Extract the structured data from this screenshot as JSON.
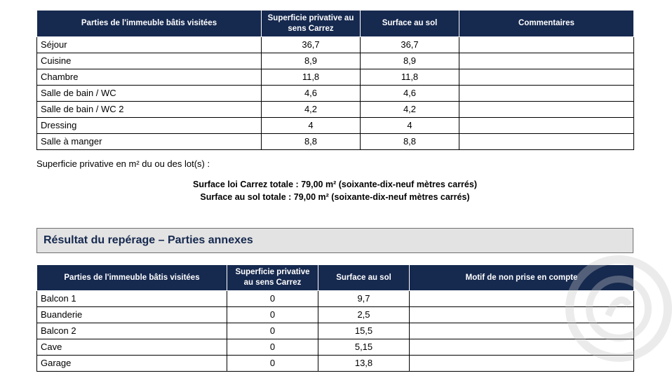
{
  "table1": {
    "headers": [
      "Parties de l'immeuble bâtis visitées",
      "Superficie privative au sens Carrez",
      "Surface au sol",
      "Commentaires"
    ],
    "rows": [
      {
        "name": "Séjour",
        "carrez": "36,7",
        "sol": "36,7",
        "comment": ""
      },
      {
        "name": "Cuisine",
        "carrez": "8,9",
        "sol": "8,9",
        "comment": ""
      },
      {
        "name": "Chambre",
        "carrez": "11,8",
        "sol": "11,8",
        "comment": ""
      },
      {
        "name": "Salle de bain / WC",
        "carrez": "4,6",
        "sol": "4,6",
        "comment": ""
      },
      {
        "name": "Salle de bain / WC 2",
        "carrez": "4,2",
        "sol": "4,2",
        "comment": ""
      },
      {
        "name": "Dressing",
        "carrez": "4",
        "sol": "4",
        "comment": ""
      },
      {
        "name": "Salle à manger",
        "carrez": "8,8",
        "sol": "8,8",
        "comment": ""
      }
    ]
  },
  "caption": "Superficie privative en m² du ou des lot(s) :",
  "totals": {
    "carrez": "Surface loi Carrez totale : 79,00 m² (soixante-dix-neuf mètres carrés)",
    "sol": "Surface au sol totale : 79,00 m² (soixante-dix-neuf mètres carrés)"
  },
  "section_title": "Résultat du repérage – Parties annexes",
  "table2": {
    "headers": [
      "Parties de l'immeuble bâtis visitées",
      "Superficie privative au sens Carrez",
      "Surface au sol",
      "Motif de non prise en compte"
    ],
    "rows": [
      {
        "name": "Balcon 1",
        "carrez": "0",
        "sol": "9,7",
        "motif": ""
      },
      {
        "name": "Buanderie",
        "carrez": "0",
        "sol": "2,5",
        "motif": ""
      },
      {
        "name": "Balcon 2",
        "carrez": "0",
        "sol": "15,5",
        "motif": ""
      },
      {
        "name": "Cave",
        "carrez": "0",
        "sol": "5,15",
        "motif": ""
      },
      {
        "name": "Garage",
        "carrez": "0",
        "sol": "13,8",
        "motif": ""
      }
    ]
  },
  "colors": {
    "header_bg": "#16294f",
    "header_text": "#ffffff",
    "section_bg": "#e3e3e3"
  }
}
